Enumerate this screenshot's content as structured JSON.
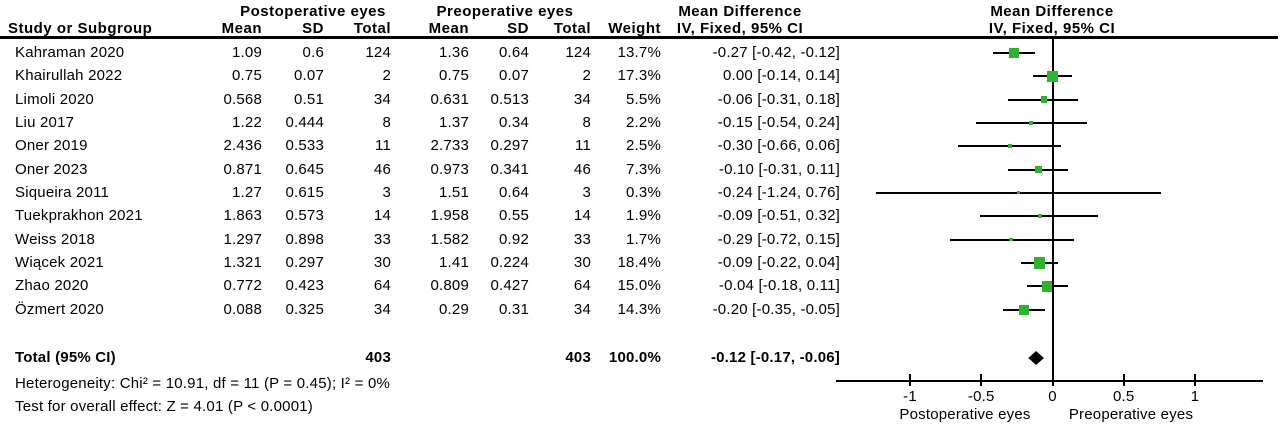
{
  "colors": {
    "square": "#2db32d",
    "diamond": "#000000",
    "line": "#000000",
    "text": "#000000"
  },
  "chart_data": {
    "type": "scatter",
    "subtype": "forest-plot-meta-analysis",
    "effect_measure": "Mean Difference",
    "effect_model": "IV, Fixed, 95% CI",
    "xlim": [
      -1.5,
      1.5
    ],
    "grid": false,
    "headers": {
      "group1": "Postoperative eyes",
      "group2": "Preoperative eyes",
      "study": "Study or Subgroup",
      "mean": "Mean",
      "sd": "SD",
      "total": "Total",
      "weight": "Weight",
      "md_title": "Mean Difference",
      "md_sub": "IV, Fixed, 95% CI"
    },
    "studies": [
      {
        "name": "Kahraman 2020",
        "mean1": "1.09",
        "sd1": "0.6",
        "total1": "124",
        "mean2": "1.36",
        "sd2": "0.64",
        "total2": "124",
        "weight": "13.7%",
        "weight_pct": 13.7,
        "ci_text": "-0.27 [-0.42, -0.12]",
        "md": -0.27,
        "ci": [
          -0.42,
          -0.12
        ]
      },
      {
        "name": "Khairullah 2022",
        "mean1": "0.75",
        "sd1": "0.07",
        "total1": "2",
        "mean2": "0.75",
        "sd2": "0.07",
        "total2": "2",
        "weight": "17.3%",
        "weight_pct": 17.3,
        "ci_text": "0.00 [-0.14, 0.14]",
        "md": 0,
        "ci": [
          -0.14,
          0.14
        ]
      },
      {
        "name": "Limoli 2020",
        "mean1": "0.568",
        "sd1": "0.51",
        "total1": "34",
        "mean2": "0.631",
        "sd2": "0.513",
        "total2": "34",
        "weight": "5.5%",
        "weight_pct": 5.5,
        "ci_text": "-0.06 [-0.31, 0.18]",
        "md": -0.06,
        "ci": [
          -0.31,
          0.18
        ]
      },
      {
        "name": "Liu 2017",
        "mean1": "1.22",
        "sd1": "0.444",
        "total1": "8",
        "mean2": "1.37",
        "sd2": "0.34",
        "total2": "8",
        "weight": "2.2%",
        "weight_pct": 2.2,
        "ci_text": "-0.15 [-0.54, 0.24]",
        "md": -0.15,
        "ci": [
          -0.54,
          0.24
        ]
      },
      {
        "name": "Oner 2019",
        "mean1": "2.436",
        "sd1": "0.533",
        "total1": "11",
        "mean2": "2.733",
        "sd2": "0.297",
        "total2": "11",
        "weight": "2.5%",
        "weight_pct": 2.5,
        "ci_text": "-0.30 [-0.66, 0.06]",
        "md": -0.3,
        "ci": [
          -0.66,
          0.06
        ]
      },
      {
        "name": "Oner 2023",
        "mean1": "0.871",
        "sd1": "0.645",
        "total1": "46",
        "mean2": "0.973",
        "sd2": "0.341",
        "total2": "46",
        "weight": "7.3%",
        "weight_pct": 7.3,
        "ci_text": "-0.10 [-0.31, 0.11]",
        "md": -0.1,
        "ci": [
          -0.31,
          0.11
        ]
      },
      {
        "name": "Siqueira 2011",
        "mean1": "1.27",
        "sd1": "0.615",
        "total1": "3",
        "mean2": "1.51",
        "sd2": "0.64",
        "total2": "3",
        "weight": "0.3%",
        "weight_pct": 0.3,
        "ci_text": "-0.24 [-1.24, 0.76]",
        "md": -0.24,
        "ci": [
          -1.24,
          0.76
        ]
      },
      {
        "name": "Tuekprakhon 2021",
        "mean1": "1.863",
        "sd1": "0.573",
        "total1": "14",
        "mean2": "1.958",
        "sd2": "0.55",
        "total2": "14",
        "weight": "1.9%",
        "weight_pct": 1.9,
        "ci_text": "-0.09 [-0.51, 0.32]",
        "md": -0.09,
        "ci": [
          -0.51,
          0.32
        ]
      },
      {
        "name": "Weiss 2018",
        "mean1": "1.297",
        "sd1": "0.898",
        "total1": "33",
        "mean2": "1.582",
        "sd2": "0.92",
        "total2": "33",
        "weight": "1.7%",
        "weight_pct": 1.7,
        "ci_text": "-0.29 [-0.72, 0.15]",
        "md": -0.29,
        "ci": [
          -0.72,
          0.15
        ]
      },
      {
        "name": "Wiącek 2021",
        "mean1": "1.321",
        "sd1": "0.297",
        "total1": "30",
        "mean2": "1.41",
        "sd2": "0.224",
        "total2": "30",
        "weight": "18.4%",
        "weight_pct": 18.4,
        "ci_text": "-0.09 [-0.22, 0.04]",
        "md": -0.09,
        "ci": [
          -0.22,
          0.04
        ]
      },
      {
        "name": "Zhao 2020",
        "mean1": "0.772",
        "sd1": "0.423",
        "total1": "64",
        "mean2": "0.809",
        "sd2": "0.427",
        "total2": "64",
        "weight": "15.0%",
        "weight_pct": 15.0,
        "ci_text": "-0.04 [-0.18, 0.11]",
        "md": -0.04,
        "ci": [
          -0.18,
          0.11
        ]
      },
      {
        "name": "Özmert 2020",
        "mean1": "0.088",
        "sd1": "0.325",
        "total1": "34",
        "mean2": "0.29",
        "sd2": "0.31",
        "total2": "34",
        "weight": "14.3%",
        "weight_pct": 14.3,
        "ci_text": "-0.20 [-0.35, -0.05]",
        "md": -0.2,
        "ci": [
          -0.35,
          -0.05
        ]
      }
    ],
    "total": {
      "label": "Total (95% CI)",
      "total1": "403",
      "total2": "403",
      "weight": "100.0%",
      "ci_text": "-0.12 [-0.17, -0.06]",
      "md": -0.12,
      "ci": [
        -0.17,
        -0.06
      ]
    },
    "footnotes": {
      "heterogeneity": "Heterogeneity: Chi² = 10.91, df = 11 (P = 0.45); I² = 0%",
      "overall_effect": "Test for overall effect: Z = 4.01 (P < 0.0001)"
    },
    "axis": {
      "ticks": [
        {
          "v": -1,
          "label": "-1"
        },
        {
          "v": -0.5,
          "label": "-0.5"
        },
        {
          "v": 0,
          "label": "0"
        },
        {
          "v": 0.5,
          "label": "0.5"
        },
        {
          "v": 1,
          "label": "1"
        }
      ],
      "left_label": "Postoperative eyes",
      "right_label": "Preoperative eyes"
    }
  }
}
